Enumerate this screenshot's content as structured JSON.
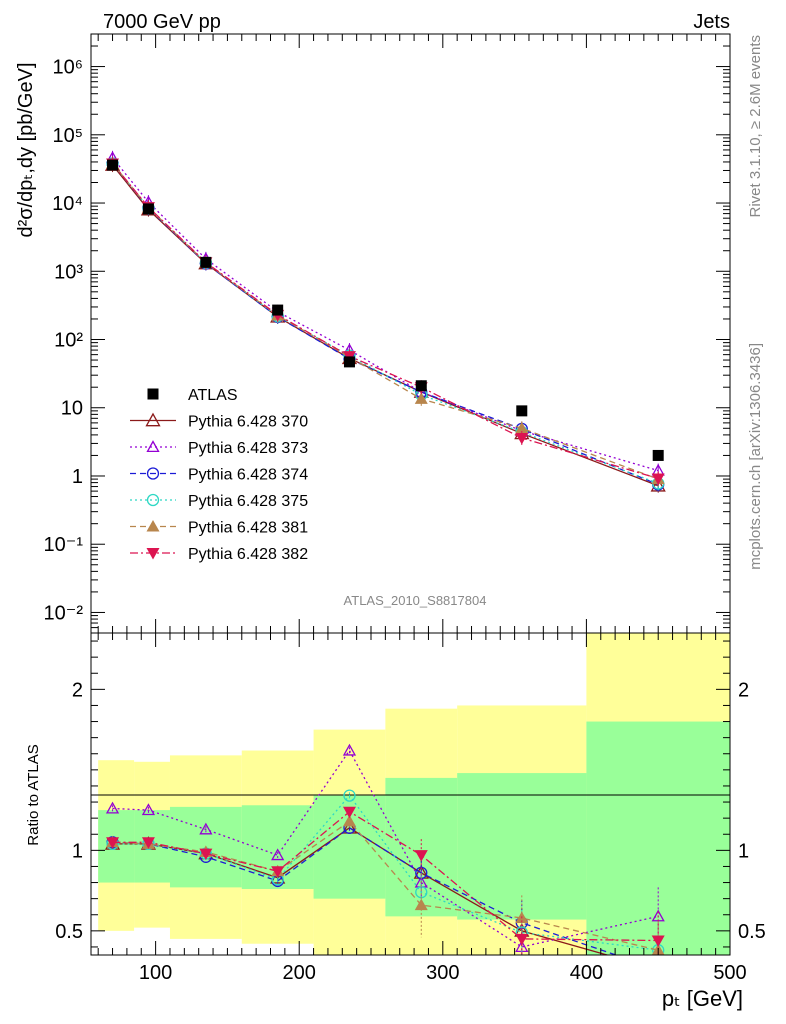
{
  "header": {
    "left": "7000 GeV pp",
    "right": "Jets"
  },
  "side": {
    "top": "Rivet 3.1.10, ≥ 2.6M events",
    "bottom": "mcplots.cern.ch [arXiv:1306.3436]"
  },
  "analysis_id": "ATLAS_2010_S8817804",
  "chart_data": [
    {
      "type": "line",
      "ylabel": "d²σ/dpₜ,dy [pb/GeV]",
      "yscale": "log",
      "xlim": [
        55,
        500
      ],
      "ylim": [
        0.005,
        3000000
      ],
      "y_tick_labels": [
        "10⁻²",
        "10⁻¹",
        "1",
        "10",
        "10²",
        "10³",
        "10⁴",
        "10⁵",
        "10⁶"
      ],
      "legend_position": "middle-left",
      "x": [
        70,
        95,
        135,
        185,
        235,
        285,
        355,
        450
      ],
      "reference": {
        "name": "ATLAS",
        "values": [
          36000,
          8200,
          1350,
          270,
          47,
          21,
          9,
          2.0
        ]
      },
      "series": [
        {
          "name": "Pythia 6.428 370",
          "values": [
            36000,
            8000,
            1300,
            215,
            53,
            17,
            4.2,
            0.72
          ]
        },
        {
          "name": "Pythia 6.428 373",
          "values": [
            46000,
            10300,
            1520,
            255,
            70,
            17,
            4.6,
            1.2
          ]
        },
        {
          "name": "Pythia 6.428 374",
          "values": [
            38000,
            8400,
            1300,
            215,
            52,
            17,
            4.9,
            0.75
          ]
        },
        {
          "name": "Pythia 6.428 375",
          "values": [
            38000,
            8500,
            1330,
            220,
            58,
            15.5,
            4.4,
            0.78
          ]
        },
        {
          "name": "Pythia 6.428 381",
          "values": [
            38000,
            8600,
            1330,
            225,
            55,
            13.5,
            5.0,
            0.9
          ]
        },
        {
          "name": "Pythia 6.428 382",
          "values": [
            38000,
            8700,
            1350,
            230,
            57,
            20,
            3.6,
            0.92
          ]
        }
      ]
    },
    {
      "type": "line",
      "xlabel": "pₜ [GeV]",
      "ylabel": "Ratio to ATLAS",
      "xlim": [
        55,
        500
      ],
      "ylim": [
        0.35,
        2.35
      ],
      "x_ticks": [
        100,
        200,
        300,
        400,
        500
      ],
      "y_ticks": [
        0.5,
        1,
        2
      ],
      "bin_edges": [
        60,
        85,
        110,
        160,
        210,
        260,
        310,
        400,
        500
      ],
      "band_stat": [
        {
          "lo": 0.8,
          "hi": 1.25
        },
        {
          "lo": 0.8,
          "hi": 1.25
        },
        {
          "lo": 0.77,
          "hi": 1.27
        },
        {
          "lo": 0.76,
          "hi": 1.28
        },
        {
          "lo": 0.7,
          "hi": 1.34
        },
        {
          "lo": 0.59,
          "hi": 1.45
        },
        {
          "lo": 0.57,
          "hi": 1.48
        },
        {
          "lo": 0.35,
          "hi": 1.8
        }
      ],
      "band_total": [
        {
          "lo": 0.5,
          "hi": 1.56
        },
        {
          "lo": 0.52,
          "hi": 1.55
        },
        {
          "lo": 0.45,
          "hi": 1.59
        },
        {
          "lo": 0.42,
          "hi": 1.62
        },
        {
          "lo": 0.35,
          "hi": 1.75
        },
        {
          "lo": 0.35,
          "hi": 1.88
        },
        {
          "lo": 0.35,
          "hi": 1.9
        },
        {
          "lo": 0.35,
          "hi": 2.35
        }
      ],
      "x": [
        70,
        95,
        135,
        185,
        235,
        285,
        355,
        450
      ],
      "series": [
        {
          "name": "Pythia 6.428 370",
          "values": [
            1.04,
            1.04,
            0.98,
            0.83,
            1.14,
            0.86,
            0.5,
            0.26
          ]
        },
        {
          "name": "Pythia 6.428 373",
          "values": [
            1.26,
            1.25,
            1.13,
            0.97,
            1.62,
            0.8,
            0.4,
            0.59
          ]
        },
        {
          "name": "Pythia 6.428 374",
          "values": [
            1.05,
            1.04,
            0.96,
            0.81,
            1.14,
            0.86,
            0.55,
            0.26
          ]
        },
        {
          "name": "Pythia 6.428 375",
          "values": [
            1.04,
            1.04,
            0.98,
            0.82,
            1.34,
            0.74,
            0.49,
            0.38
          ]
        },
        {
          "name": "Pythia 6.428 381",
          "values": [
            1.05,
            1.04,
            0.99,
            0.87,
            1.18,
            0.66,
            0.58,
            0.38
          ]
        },
        {
          "name": "Pythia 6.428 382",
          "values": [
            1.05,
            1.05,
            0.98,
            0.87,
            1.24,
            0.97,
            0.45,
            0.44
          ]
        }
      ]
    }
  ],
  "colors": {
    "reference": "#000000",
    "series": [
      "#8b1a1a",
      "#9400d3",
      "#1c1cd6",
      "#2ed8c4",
      "#b8864d",
      "#dc1450"
    ],
    "band_stat": "#99ff99",
    "band_total": "#ffff99"
  }
}
